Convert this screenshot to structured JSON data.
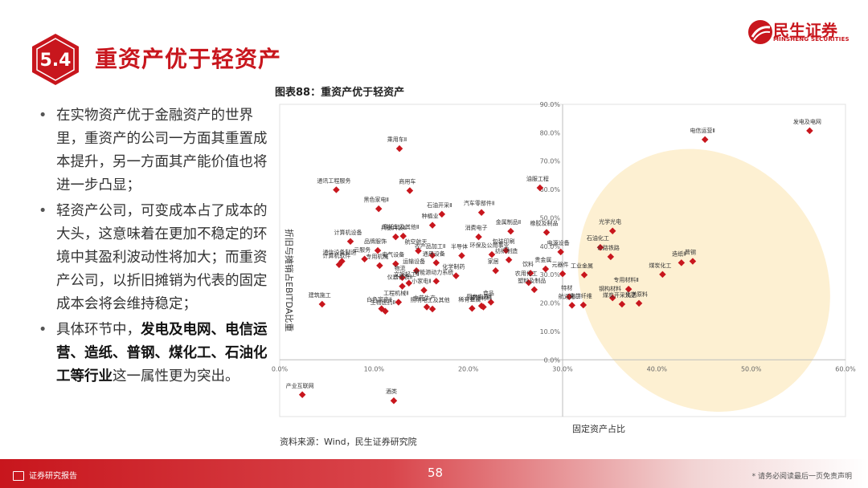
{
  "header": {
    "badge": "5.4",
    "title": "重资产优于轻资产",
    "logo_cn": "民生证券",
    "logo_en": "MINSHENG SECURITIES"
  },
  "bullets": [
    {
      "parts": [
        {
          "t": "在实物资产优于金融资产的世界里，重资产的公司一方面其重置成本提升，另一方面其产能价值也将进一步凸显；",
          "b": false
        }
      ]
    },
    {
      "parts": [
        {
          "t": "轻资产公司，可变成本占了成本的大头，这意味着在更加不稳定的环境中其盈利波动性将加大；而重资产公司，以折旧摊销为代表的固定成本会将会维持稳定；",
          "b": false
        }
      ]
    },
    {
      "parts": [
        {
          "t": "具体环节中，",
          "b": false
        },
        {
          "t": "发电及电网、电信运营、造纸、普钢、煤化工、石油化工等行业",
          "b": true
        },
        {
          "t": "这一属性更为突出。",
          "b": false
        }
      ]
    }
  ],
  "chart_title": "图表88：重资产优于轻资产",
  "source": "资料来源：Wind，民生证券研究院",
  "footer": {
    "report": "证券研究报告",
    "page": "58",
    "disclaimer": "* 请务必阅读最后一页免责声明"
  },
  "chart_data": {
    "type": "scatter",
    "xlabel": "固定资产占比",
    "ylabel": "折旧与摊销占EBITDA比重",
    "xlim": [
      0,
      60
    ],
    "ylim": [
      -20,
      90
    ],
    "x_ticks": [
      "0.0%",
      "10.0%",
      "20.0%",
      "30.0%",
      "40.0%",
      "50.0%",
      "60.0%"
    ],
    "y_ticks": [
      "0.0%",
      "10.0%",
      "20.0%",
      "30.0%",
      "40.0%",
      "50.0%",
      "60.0%",
      "70.0%",
      "80.0%",
      "90.0%"
    ],
    "marker_color": "#c8161d",
    "highlight_color": "#fdf0d2",
    "points": [
      {
        "label": "发电及电网",
        "x": 56.2,
        "y": 80.7
      },
      {
        "label": "电信运营Ⅱ",
        "x": 45.1,
        "y": 77.6
      },
      {
        "label": "乘用车Ⅱ",
        "x": 12.7,
        "y": 74.4
      },
      {
        "label": "通讯工程服务",
        "x": 6.0,
        "y": 59.9
      },
      {
        "label": "商用车",
        "x": 13.8,
        "y": 59.6
      },
      {
        "label": "油服工程",
        "x": 27.6,
        "y": 60.6
      },
      {
        "label": "黑色家电Ⅱ",
        "x": 10.5,
        "y": 53.2
      },
      {
        "label": "石油开采Ⅱ",
        "x": 17.2,
        "y": 51.3
      },
      {
        "label": "汽车零部件Ⅱ",
        "x": 21.4,
        "y": 51.9
      },
      {
        "label": "种植业",
        "x": 16.2,
        "y": 47.4
      },
      {
        "label": "兵器兵装Ⅱ",
        "x": 12.3,
        "y": 43.3
      },
      {
        "label": "摩托车及其他Ⅱ",
        "x": 13.1,
        "y": 43.6
      },
      {
        "label": "计算机设备",
        "x": 7.5,
        "y": 41.7
      },
      {
        "label": "金属制品Ⅱ",
        "x": 24.5,
        "y": 45.3
      },
      {
        "label": "橡胶及制品",
        "x": 28.3,
        "y": 44.9
      },
      {
        "label": "消费电子",
        "x": 21.1,
        "y": 43.3
      },
      {
        "label": "光学光电",
        "x": 35.3,
        "y": 45.4
      },
      {
        "label": "品牌服饰",
        "x": 10.4,
        "y": 38.5
      },
      {
        "label": "航空航天",
        "x": 14.7,
        "y": 38.4
      },
      {
        "label": "半导体",
        "x": 19.3,
        "y": 36.7
      },
      {
        "label": "包装印刷",
        "x": 24.0,
        "y": 38.5
      },
      {
        "label": "石油化工",
        "x": 34.0,
        "y": 39.6
      },
      {
        "label": "电源设备",
        "x": 29.8,
        "y": 38.0
      },
      {
        "label": "通信设备制造",
        "x": 6.6,
        "y": 34.7
      },
      {
        "label": "云服务",
        "x": 9.0,
        "y": 35.5
      },
      {
        "label": "电气设备",
        "x": 12.3,
        "y": 33.8
      },
      {
        "label": "农产品加工Ⅱ",
        "x": 16.2,
        "y": 36.8
      },
      {
        "label": "环保及公用事业",
        "x": 22.5,
        "y": 37.1
      },
      {
        "label": "通用设备",
        "x": 16.6,
        "y": 34.2
      },
      {
        "label": "公路铁路",
        "x": 35.1,
        "y": 36.3
      },
      {
        "label": "计算机软件",
        "x": 6.3,
        "y": 33.5
      },
      {
        "label": "专用机械",
        "x": 10.6,
        "y": 33.2
      },
      {
        "label": "纺织制造",
        "x": 24.3,
        "y": 35.2
      },
      {
        "label": "造纸Ⅱ",
        "x": 42.6,
        "y": 34.2
      },
      {
        "label": "普钢",
        "x": 43.8,
        "y": 34.7
      },
      {
        "label": "运输设备",
        "x": 14.5,
        "y": 31.4
      },
      {
        "label": "贵金属",
        "x": 28.2,
        "y": 32.0
      },
      {
        "label": "家居",
        "x": 22.9,
        "y": 31.4
      },
      {
        "label": "物流",
        "x": 13.0,
        "y": 29.0
      },
      {
        "label": "化学制药",
        "x": 18.7,
        "y": 29.6
      },
      {
        "label": "饮料",
        "x": 26.6,
        "y": 30.5
      },
      {
        "label": "元器件",
        "x": 30.0,
        "y": 30.3
      },
      {
        "label": "文娱轻工Ⅱ",
        "x": 13.7,
        "y": 27.0
      },
      {
        "label": "仪器仪表Ⅱ",
        "x": 13.0,
        "y": 25.9
      },
      {
        "label": "新能源动力系统",
        "x": 16.6,
        "y": 27.7
      },
      {
        "label": "工业金属",
        "x": 32.3,
        "y": 29.9
      },
      {
        "label": "煤炭化工",
        "x": 40.6,
        "y": 30.1
      },
      {
        "label": "农用化工",
        "x": 26.4,
        "y": 27.2
      },
      {
        "label": "专用材料Ⅱ",
        "x": 37.0,
        "y": 24.9
      },
      {
        "label": "小家电Ⅱ",
        "x": 15.3,
        "y": 24.5
      },
      {
        "label": "塑料及制品",
        "x": 27.0,
        "y": 24.7
      },
      {
        "label": "特材",
        "x": 30.7,
        "y": 22.2
      },
      {
        "label": "钢构材料",
        "x": 35.3,
        "y": 21.8
      },
      {
        "label": "建筑施工",
        "x": 4.5,
        "y": 19.6
      },
      {
        "label": "工程机械Ⅱ",
        "x": 12.6,
        "y": 20.3
      },
      {
        "label": "中药生产",
        "x": 15.6,
        "y": 18.6
      },
      {
        "label": "厨房电器Ⅱ",
        "x": 21.4,
        "y": 19.0
      },
      {
        "label": "食品",
        "x": 22.4,
        "y": 20.3
      },
      {
        "label": "装饰材料",
        "x": 21.6,
        "y": 18.6
      },
      {
        "label": "航运港口",
        "x": 31.0,
        "y": 19.2
      },
      {
        "label": "化学原料",
        "x": 38.1,
        "y": 19.9
      },
      {
        "label": "白色家电Ⅱ",
        "x": 10.8,
        "y": 18.0
      },
      {
        "label": "化学纤维",
        "x": 32.2,
        "y": 19.3
      },
      {
        "label": "煤炭开采洗选",
        "x": 36.3,
        "y": 19.6
      },
      {
        "label": "照明电工及其他",
        "x": 16.2,
        "y": 17.9
      },
      {
        "label": "稀有金属",
        "x": 20.4,
        "y": 18.1
      },
      {
        "label": "生物医药Ⅱ",
        "x": 11.2,
        "y": 17.1
      },
      {
        "label": "产业互联网",
        "x": 2.4,
        "y": -12.3
      },
      {
        "label": "酒类",
        "x": 12.1,
        "y": -14.4
      }
    ]
  }
}
